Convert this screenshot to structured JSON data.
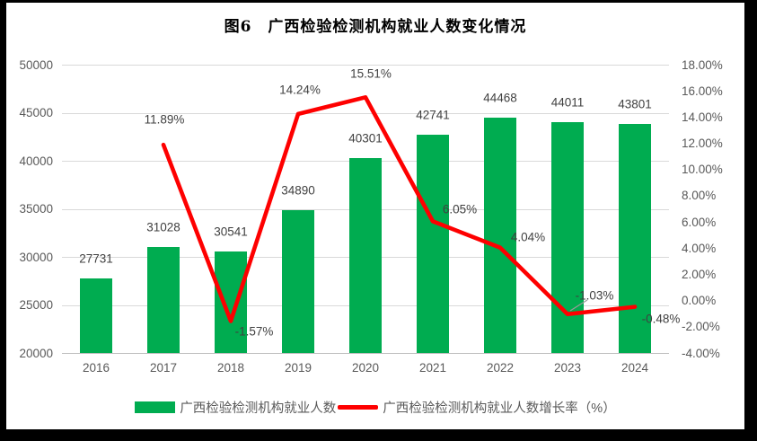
{
  "title": "图6　广西检验检测机构就业人数变化情况",
  "chart_data": {
    "type": "combo-bar-line",
    "title": "图6　广西检验检测机构就业人数变化情况",
    "categories": [
      "2016",
      "2017",
      "2018",
      "2019",
      "2020",
      "2021",
      "2022",
      "2023",
      "2024"
    ],
    "series": [
      {
        "name": "广西检验检测机构就业人数",
        "type": "bar",
        "axis": "left",
        "color": "#00AC50",
        "values": [
          27731,
          31028,
          30541,
          34890,
          40301,
          42741,
          44468,
          44011,
          43801
        ],
        "labels": [
          "27731",
          "31028",
          "30541",
          "34890",
          "40301",
          "42741",
          "44468",
          "44011",
          "43801"
        ]
      },
      {
        "name": "广西检验检测机构就业人数增长率（%）",
        "type": "line",
        "axis": "right",
        "color": "#FE0000",
        "values": [
          null,
          11.89,
          -1.57,
          14.24,
          15.51,
          6.05,
          4.04,
          -1.03,
          -0.48
        ],
        "labels": [
          null,
          "11.89%",
          "-1.57%",
          "14.24%",
          "15.51%",
          "6.05%",
          "4.04%",
          "-1.03%",
          "-0.48%"
        ]
      }
    ],
    "left_axis": {
      "min": 20000,
      "max": 50000,
      "step": 5000,
      "tick_labels": [
        "20000",
        "25000",
        "30000",
        "35000",
        "40000",
        "45000",
        "50000"
      ]
    },
    "right_axis": {
      "min": -4,
      "max": 18,
      "step": 2,
      "tick_labels": [
        "-4.00%",
        "-2.00%",
        "0.00%",
        "2.00%",
        "4.00%",
        "6.00%",
        "8.00%",
        "10.00%",
        "12.00%",
        "14.00%",
        "16.00%",
        "18.00%"
      ]
    },
    "grid": true,
    "legend_position": "bottom"
  },
  "colors": {
    "bar": "#00AC50",
    "line": "#FE0000",
    "grid": "#D9D9D9",
    "axis_text": "#595959",
    "label_text": "#404040",
    "frame": "#000000",
    "background": "#FFFFFF"
  }
}
